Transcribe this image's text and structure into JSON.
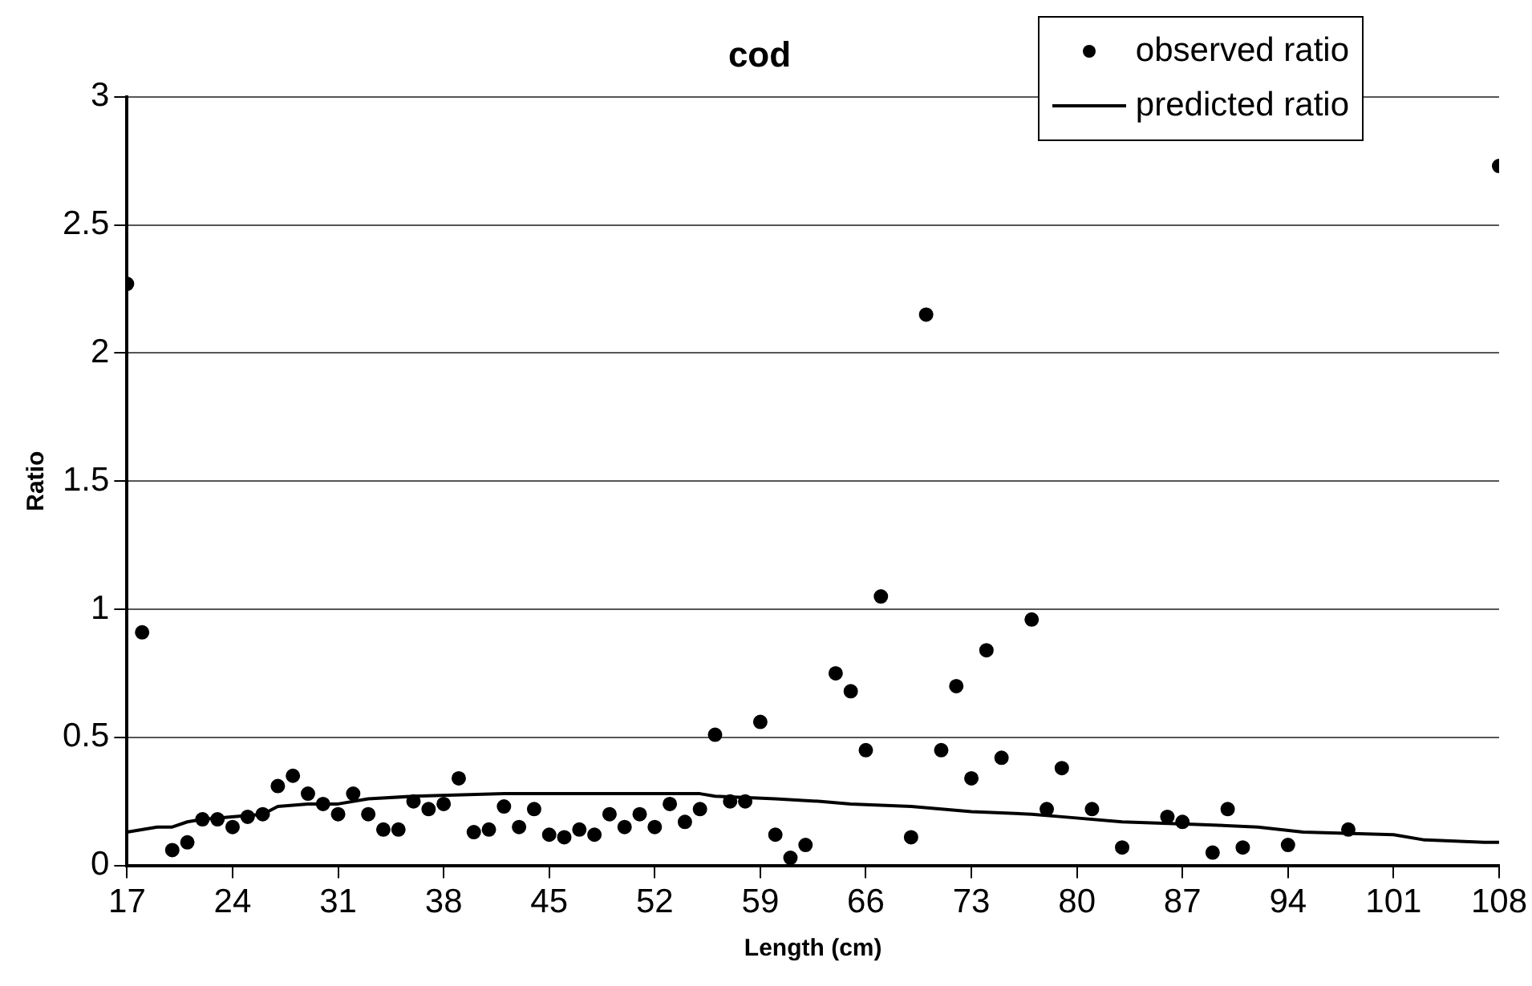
{
  "chart_data": {
    "type": "scatter",
    "title": "cod",
    "xlabel": "Length (cm)",
    "ylabel": "Ratio",
    "xlim": [
      17,
      108
    ],
    "xticks": [
      17,
      24,
      31,
      38,
      45,
      52,
      59,
      66,
      73,
      80,
      87,
      94,
      101,
      108
    ],
    "ylim": [
      0,
      3
    ],
    "yticks": [
      0,
      0.5,
      1,
      1.5,
      2,
      2.5,
      3
    ],
    "grid": "y",
    "legend": "top right",
    "series": [
      {
        "name": "observed ratio",
        "marker": "circle",
        "color": "#000000",
        "x": [
          17,
          18,
          20,
          21,
          22,
          23,
          24,
          25,
          26,
          27,
          28,
          29,
          30,
          31,
          32,
          33,
          34,
          35,
          36,
          37,
          38,
          39,
          40,
          41,
          42,
          43,
          44,
          45,
          46,
          47,
          48,
          49,
          50,
          51,
          52,
          53,
          54,
          55,
          56,
          57,
          58,
          59,
          60,
          61,
          62,
          64,
          65,
          66,
          67,
          69,
          70,
          71,
          72,
          73,
          74,
          75,
          77,
          78,
          79,
          81,
          83,
          86,
          87,
          89,
          90,
          91,
          94,
          98,
          108
        ],
        "values": [
          2.27,
          0.91,
          0.06,
          0.09,
          0.18,
          0.18,
          0.15,
          0.19,
          0.2,
          0.31,
          0.35,
          0.28,
          0.24,
          0.2,
          0.28,
          0.2,
          0.14,
          0.14,
          0.25,
          0.22,
          0.24,
          0.34,
          0.13,
          0.14,
          0.23,
          0.15,
          0.22,
          0.12,
          0.11,
          0.14,
          0.12,
          0.2,
          0.15,
          0.2,
          0.15,
          0.24,
          0.17,
          0.22,
          0.51,
          0.25,
          0.25,
          0.56,
          0.12,
          0.03,
          0.08,
          0.75,
          0.68,
          0.45,
          1.05,
          0.11,
          2.15,
          0.45,
          0.7,
          0.34,
          0.84,
          0.42,
          0.96,
          0.22,
          0.38,
          0.22,
          0.07,
          0.19,
          0.17,
          0.05,
          0.22,
          0.07,
          0.08,
          0.14,
          2.73
        ]
      },
      {
        "name": "predicted ratio",
        "type": "line",
        "marker": "none",
        "line_style": "solid",
        "color": "#000000",
        "x": [
          17,
          19,
          20,
          21,
          22,
          26,
          27,
          29,
          31,
          33,
          36,
          42,
          49,
          55,
          56,
          60,
          63,
          65,
          69,
          71,
          73,
          77,
          79,
          83,
          88,
          92,
          95,
          101,
          103,
          107,
          108
        ],
        "values": [
          0.13,
          0.15,
          0.15,
          0.17,
          0.18,
          0.2,
          0.23,
          0.24,
          0.24,
          0.26,
          0.27,
          0.28,
          0.28,
          0.28,
          0.27,
          0.26,
          0.25,
          0.24,
          0.23,
          0.22,
          0.21,
          0.2,
          0.19,
          0.17,
          0.16,
          0.15,
          0.13,
          0.12,
          0.1,
          0.09,
          0.09
        ]
      }
    ]
  }
}
